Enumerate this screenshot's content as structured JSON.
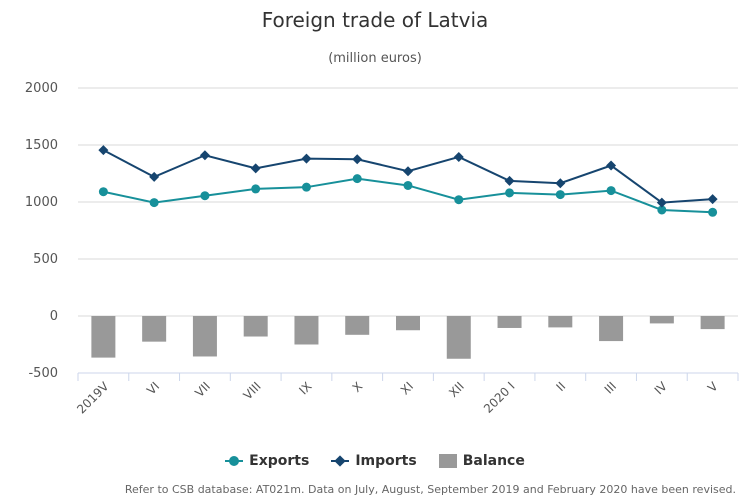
{
  "title": "Foreign trade of Latvia",
  "subtitle": "(million euros)",
  "footnote": "Refer to CSB database: AT021m. Data on July, August, September 2019 and February 2020 have been revised.",
  "legend": {
    "exports": "Exports",
    "imports": "Imports",
    "balance": "Balance"
  },
  "colors": {
    "exports": "#17909a",
    "imports": "#16456f",
    "balance": "#999999",
    "grid": "#d8d8d8"
  },
  "chart_data": {
    "type": "line",
    "title": "Foreign trade of Latvia",
    "subtitle": "(million euros)",
    "categories": [
      "2019V",
      "VI",
      "VII",
      "VIII",
      "IX",
      "X",
      "XI",
      "XII",
      "2020 I",
      "II",
      "III",
      "IV",
      "V"
    ],
    "ylim": [
      -500,
      2000
    ],
    "yticks": [
      2000,
      1500,
      1000,
      500,
      0,
      -500
    ],
    "grid": true,
    "legend_position": "bottom",
    "series": [
      {
        "name": "Exports",
        "type": "line",
        "marker": "circle",
        "values": [
          1090,
          995,
          1055,
          1115,
          1130,
          1205,
          1145,
          1020,
          1080,
          1065,
          1100,
          930,
          910
        ]
      },
      {
        "name": "Imports",
        "type": "line",
        "marker": "diamond",
        "values": [
          1455,
          1220,
          1410,
          1295,
          1380,
          1375,
          1270,
          1395,
          1185,
          1165,
          1320,
          995,
          1025
        ]
      },
      {
        "name": "Balance",
        "type": "bar",
        "values": [
          -365,
          -225,
          -355,
          -180,
          -250,
          -165,
          -125,
          -375,
          -105,
          -100,
          -220,
          -65,
          -115
        ]
      }
    ]
  }
}
